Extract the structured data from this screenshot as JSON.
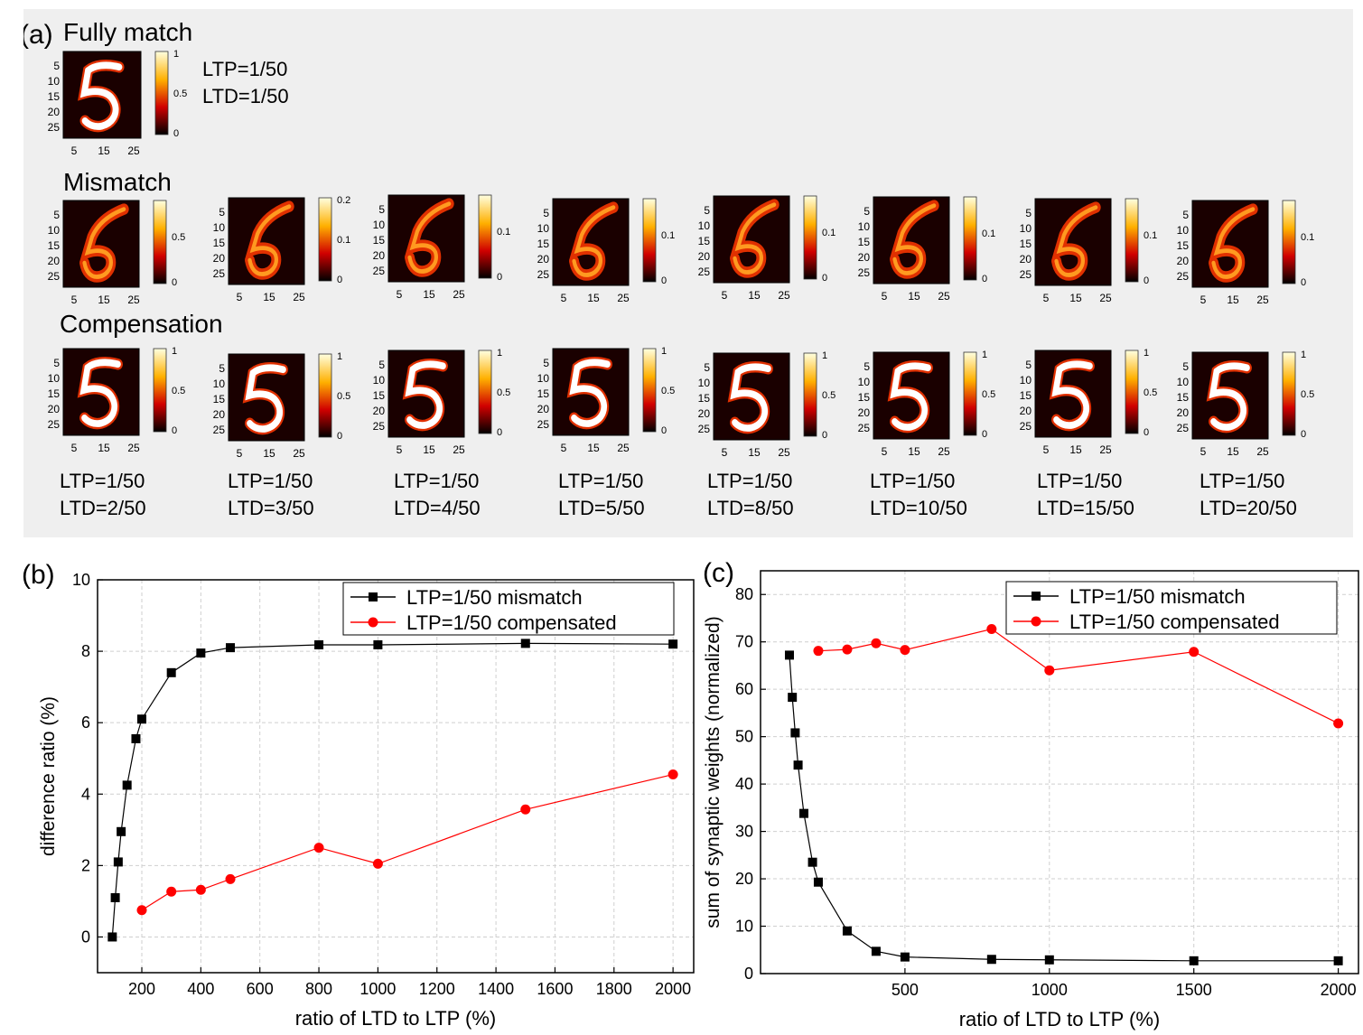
{
  "panel_a": {
    "label": "(a)",
    "row_titles": {
      "full": "Fully match",
      "mismatch": "Mismatch",
      "compensation": "Compensation"
    },
    "full_params": [
      "LTP=1/50",
      "LTD=1/50"
    ],
    "heatmap_ticks": [
      "5",
      "10",
      "15",
      "20",
      "25"
    ],
    "heatmap_xticks": [
      "5",
      "15",
      "25"
    ],
    "full_colorbar": [
      "1",
      "0.5",
      "0"
    ],
    "mismatch_colorbars": [
      [
        "0.5",
        "0"
      ],
      [
        "0.2",
        "0.1",
        "0"
      ],
      [
        "0.1",
        "0"
      ],
      [
        "0.1",
        "0"
      ],
      [
        "0.1",
        "0"
      ],
      [
        "0.1",
        "0"
      ],
      [
        "0.1",
        "0"
      ],
      [
        "0.1",
        "0"
      ]
    ],
    "comp_colorbar": [
      "1",
      "0.5",
      "0"
    ],
    "comp_params": [
      [
        "LTP=1/50",
        "LTD=2/50"
      ],
      [
        "LTP=1/50",
        "LTD=3/50"
      ],
      [
        "LTP=1/50",
        "LTD=4/50"
      ],
      [
        "LTP=1/50",
        "LTD=5/50"
      ],
      [
        "LTP=1/50",
        "LTD=8/50"
      ],
      [
        "LTP=1/50",
        "LTD=10/50"
      ],
      [
        "LTP=1/50",
        "LTD=15/50"
      ],
      [
        "LTP=1/50",
        "LTD=20/50"
      ]
    ]
  },
  "chart_data": [
    {
      "type": "line",
      "panel_label": "(b)",
      "xlabel": "ratio of LTD to LTP (%)",
      "ylabel": "difference ratio (%)",
      "xlim": [
        50,
        2070
      ],
      "ylim": [
        -1,
        10
      ],
      "xticks": [
        "200",
        "400",
        "600",
        "800",
        "1000",
        "1200",
        "1400",
        "1600",
        "1800",
        "2000"
      ],
      "yticks": [
        "0",
        "2",
        "4",
        "6",
        "8",
        "10"
      ],
      "grid": true,
      "legend": "top-right",
      "series": [
        {
          "name": "LTP=1/50 mismatch",
          "color": "#000000",
          "marker": "square",
          "x": [
            100,
            110,
            120,
            130,
            150,
            180,
            200,
            300,
            400,
            500,
            800,
            1000,
            1500,
            2000
          ],
          "y": [
            0,
            1.1,
            2.1,
            2.95,
            4.25,
            5.55,
            6.1,
            7.4,
            7.95,
            8.1,
            8.18,
            8.18,
            8.22,
            8.2
          ]
        },
        {
          "name": "LTP=1/50 compensated",
          "color": "#ff0000",
          "marker": "circle",
          "x": [
            200,
            300,
            400,
            500,
            800,
            1000,
            1500,
            2000
          ],
          "y": [
            0.75,
            1.27,
            1.32,
            1.62,
            2.5,
            2.05,
            3.57,
            4.55
          ]
        }
      ]
    },
    {
      "type": "line",
      "panel_label": "(c)",
      "xlabel": "ratio of LTD to LTP (%)",
      "ylabel": "sum of synaptic weights (normalized)",
      "xlim": [
        0,
        2070
      ],
      "ylim": [
        0,
        85
      ],
      "xticks": [
        "500",
        "1000",
        "1500",
        "2000"
      ],
      "yticks": [
        "0",
        "10",
        "20",
        "30",
        "40",
        "50",
        "60",
        "70",
        "80"
      ],
      "grid": true,
      "legend": "top-right",
      "series": [
        {
          "name": "LTP=1/50 mismatch",
          "color": "#000000",
          "marker": "square",
          "x": [
            100,
            110,
            120,
            130,
            150,
            180,
            200,
            300,
            400,
            500,
            800,
            1000,
            1500,
            2000
          ],
          "y": [
            67.2,
            58.3,
            50.8,
            44.0,
            33.8,
            23.5,
            19.3,
            9.0,
            4.7,
            3.5,
            3.0,
            2.9,
            2.7,
            2.7
          ]
        },
        {
          "name": "LTP=1/50 compensated",
          "color": "#ff0000",
          "marker": "circle",
          "x": [
            200,
            300,
            400,
            500,
            800,
            1000,
            1500,
            2000
          ],
          "y": [
            68.1,
            68.4,
            69.7,
            68.3,
            72.7,
            64.0,
            67.9,
            52.8
          ]
        }
      ]
    }
  ]
}
